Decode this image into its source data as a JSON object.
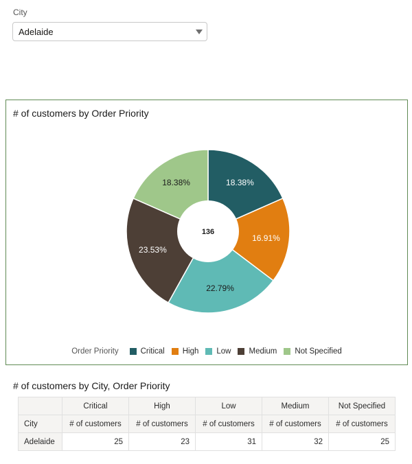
{
  "filter": {
    "label": "City",
    "value": "Adelaide"
  },
  "chart_title": "# of customers by Order Priority",
  "chart_data": {
    "type": "pie",
    "donut": true,
    "title": "# of customers by Order Priority",
    "center_total": "136",
    "legend_title": "Order Priority",
    "legend_position": "bottom",
    "categories": [
      "Critical",
      "High",
      "Low",
      "Medium",
      "Not Specified"
    ],
    "values": [
      25,
      23,
      31,
      32,
      25
    ],
    "labels": [
      "18.38%",
      "16.91%",
      "22.79%",
      "23.53%",
      "18.38%"
    ],
    "colors": [
      "#225d64",
      "#e17e11",
      "#5fbab5",
      "#4d3f36",
      "#9fc78a"
    ]
  },
  "table": {
    "title": "# of customers by City, Order Priority",
    "row_header": "City",
    "columns": [
      "Critical",
      "High",
      "Low",
      "Medium",
      "Not Specified"
    ],
    "measure": "# of customers",
    "rows": [
      {
        "label": "Adelaide",
        "values": [
          "25",
          "23",
          "31",
          "32",
          "25"
        ]
      }
    ]
  }
}
